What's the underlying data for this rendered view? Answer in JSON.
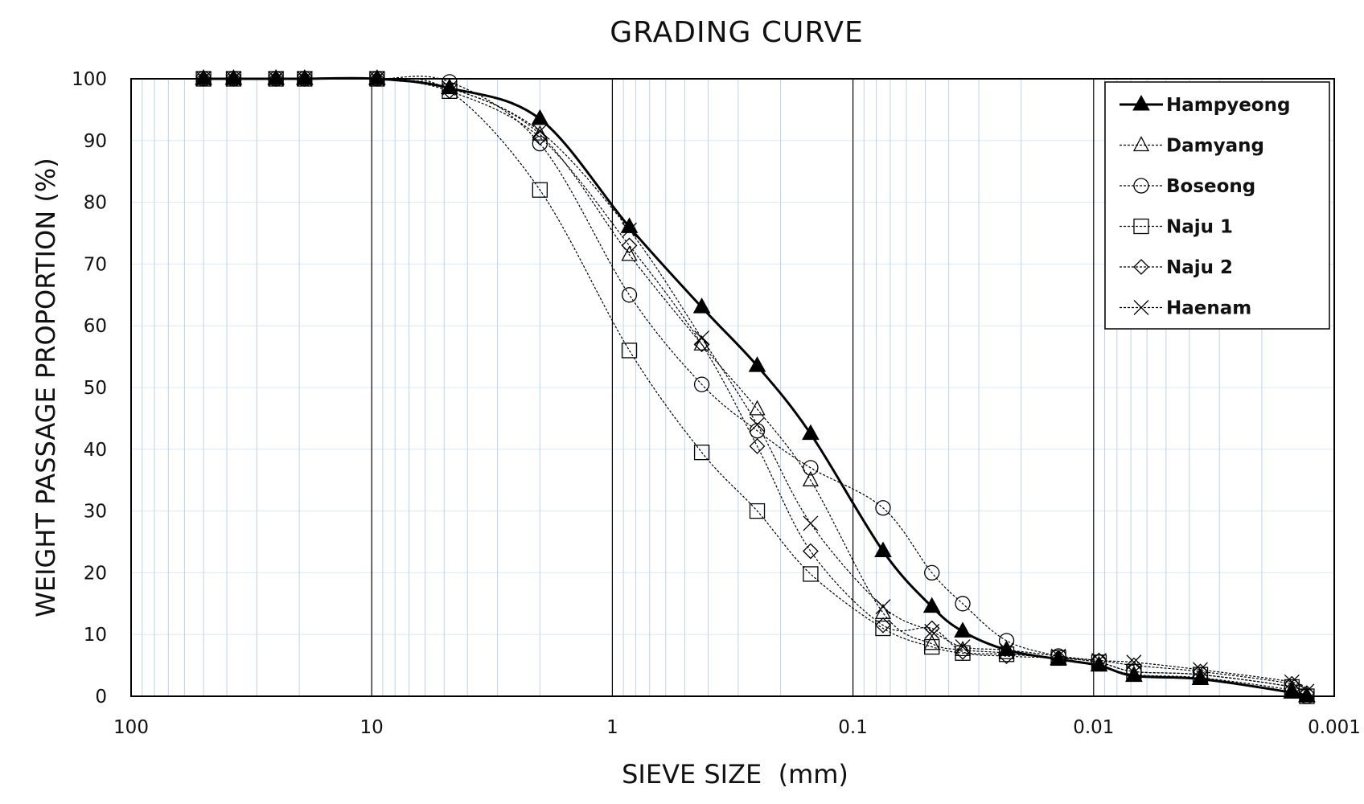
{
  "chart_data": {
    "type": "line",
    "title": "GRADING CURVE",
    "xlabel": "SIEVE SIZE  (mm)",
    "ylabel": "WEIGHT PASSAGE PROPORTION (%)",
    "x_scale": "log",
    "x_reversed": true,
    "xlim": [
      100,
      0.001
    ],
    "ylim": [
      0,
      100
    ],
    "x_ticks": [
      {
        "value": 100,
        "label": "100"
      },
      {
        "value": 10,
        "label": "10"
      },
      {
        "value": 1,
        "label": "1"
      },
      {
        "value": 0.1,
        "label": "0.1"
      },
      {
        "value": 0.01,
        "label": "0.01"
      },
      {
        "value": 0.001,
        "label": "0.001"
      }
    ],
    "y_ticks": [
      {
        "value": 0,
        "label": "0"
      },
      {
        "value": 10,
        "label": "10"
      },
      {
        "value": 20,
        "label": "20"
      },
      {
        "value": 30,
        "label": "30"
      },
      {
        "value": 40,
        "label": "40"
      },
      {
        "value": 50,
        "label": "50"
      },
      {
        "value": 60,
        "label": "60"
      },
      {
        "value": 70,
        "label": "70"
      },
      {
        "value": 80,
        "label": "80"
      },
      {
        "value": 90,
        "label": "90"
      },
      {
        "value": 100,
        "label": "100"
      }
    ],
    "grid": true,
    "legend_position": "top-right",
    "colors": {
      "major_grid": "#000000",
      "minor_grid": "#bcd3ec",
      "horizontal_grid": "#dce8f6",
      "series": "#000000"
    },
    "series": [
      {
        "name": "Hampyeong",
        "marker": "filled-triangle",
        "line": "solid-thick",
        "x": [
          50,
          37.5,
          25,
          19,
          9.5,
          4.75,
          2,
          0.85,
          0.425,
          0.25,
          0.15,
          0.075,
          0.047,
          0.035,
          0.023,
          0.014,
          0.0095,
          0.0068,
          0.0036,
          0.0015,
          0.0013
        ],
        "y": [
          100,
          100,
          100,
          100,
          100,
          98.5,
          93.5,
          76,
          63,
          53.5,
          42.5,
          23.5,
          14.5,
          10.5,
          7.5,
          6,
          5,
          3.3,
          2.8,
          0.6,
          0
        ]
      },
      {
        "name": "Damyang",
        "marker": "open-triangle",
        "line": "dotted",
        "x": [
          50,
          37.5,
          25,
          19,
          9.5,
          4.75,
          2,
          0.85,
          0.425,
          0.25,
          0.15,
          0.075,
          0.047,
          0.035,
          0.023,
          0.014,
          0.0095,
          0.0068,
          0.0036,
          0.0015,
          0.0013
        ],
        "y": [
          100,
          100,
          100,
          100,
          100,
          98.5,
          91,
          71.5,
          57,
          46.5,
          35,
          13.5,
          8.5,
          7.5,
          7,
          6,
          5,
          3.5,
          3,
          1,
          0
        ]
      },
      {
        "name": "Boseong",
        "marker": "open-circle",
        "line": "dotted",
        "x": [
          50,
          37.5,
          25,
          19,
          9.5,
          4.75,
          2,
          0.85,
          0.425,
          0.25,
          0.15,
          0.075,
          0.047,
          0.035,
          0.023,
          0.014,
          0.0095,
          0.0068,
          0.0036,
          0.0015,
          0.0013
        ],
        "y": [
          100,
          100,
          100,
          100,
          100,
          99.5,
          89.5,
          65,
          50.5,
          43,
          37,
          30.5,
          20,
          15,
          9,
          6.5,
          5.5,
          4,
          3.5,
          1.5,
          0
        ]
      },
      {
        "name": "Naju 1",
        "marker": "open-square",
        "line": "dotted",
        "x": [
          50,
          37.5,
          25,
          19,
          9.5,
          4.75,
          2,
          0.85,
          0.425,
          0.25,
          0.15,
          0.075,
          0.047,
          0.035,
          0.023,
          0.014,
          0.0095,
          0.0068,
          0.0036,
          0.0015,
          0.0013
        ],
        "y": [
          100,
          100,
          100,
          100,
          100,
          98,
          82,
          56,
          39.5,
          30,
          19.8,
          11,
          8,
          7,
          6.8,
          6.2,
          5.5,
          4,
          3.5,
          1.5,
          0
        ]
      },
      {
        "name": "Naju 2",
        "marker": "open-diamond",
        "line": "dotted",
        "x": [
          50,
          37.5,
          25,
          19,
          9.5,
          4.75,
          2,
          0.85,
          0.425,
          0.25,
          0.15,
          0.075,
          0.047,
          0.035,
          0.023,
          0.014,
          0.0095,
          0.0068,
          0.0036,
          0.0015,
          0.0013
        ],
        "y": [
          100,
          100,
          100,
          100,
          100,
          98,
          90.5,
          73,
          57,
          40.5,
          23.5,
          11.5,
          11,
          7.2,
          6.5,
          6.2,
          5.8,
          5,
          4,
          2,
          0.5
        ]
      },
      {
        "name": "Haenam",
        "marker": "cross",
        "line": "dotted",
        "x": [
          50,
          37.5,
          25,
          19,
          9.5,
          4.75,
          2,
          0.85,
          0.425,
          0.25,
          0.15,
          0.075,
          0.047,
          0.035,
          0.023,
          0.014,
          0.0095,
          0.0068,
          0.0036,
          0.0015,
          0.0013
        ],
        "y": [
          100,
          100,
          100,
          100,
          100,
          98.5,
          91.5,
          75.5,
          58,
          44,
          28,
          14.5,
          10.5,
          8,
          7.5,
          6.5,
          5.8,
          5.5,
          4.3,
          2.3,
          0.8
        ]
      }
    ]
  }
}
